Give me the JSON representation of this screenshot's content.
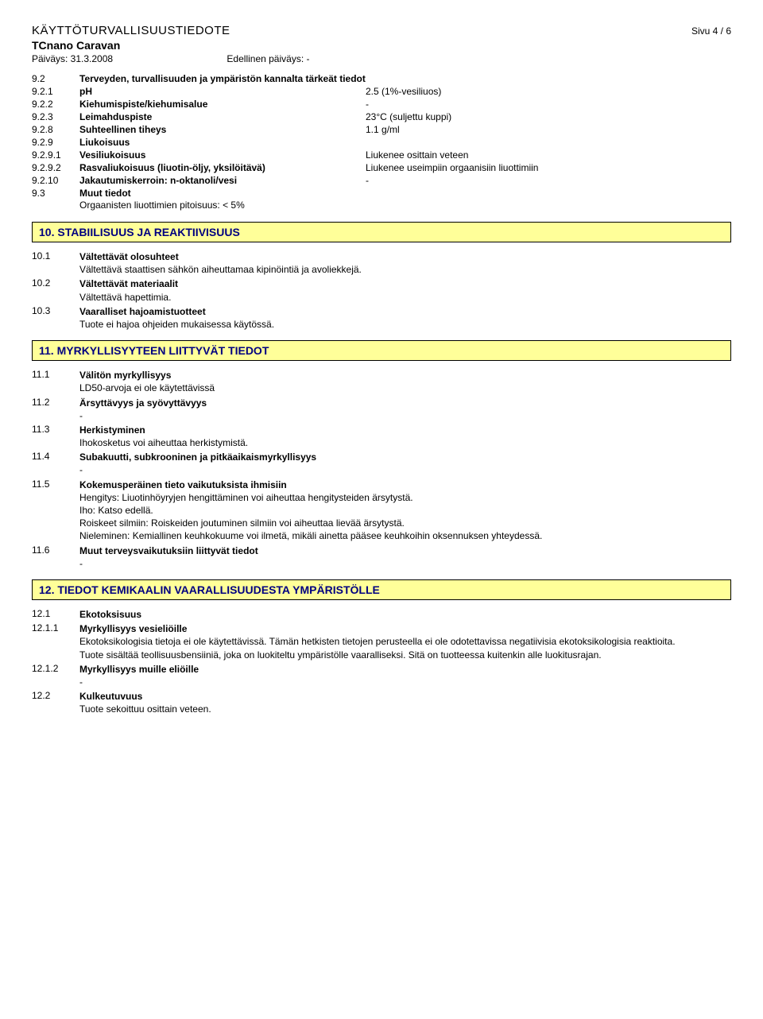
{
  "header": {
    "doc_title": "KÄYTTÖTURVALLISUUSTIEDOTE",
    "page_label": "Sivu  4 / 6",
    "product": "TCnano Caravan",
    "date_label": "Päiväys: 31.3.2008",
    "prev_date_label": "Edellinen päiväys: -"
  },
  "props": {
    "r92": {
      "num": "9.2",
      "label": "Terveyden, turvallisuuden ja ympäristön kannalta tärkeät tiedot",
      "value": ""
    },
    "r921": {
      "num": "9.2.1",
      "label": "pH",
      "value": "2.5 (1%-vesiliuos)"
    },
    "r922": {
      "num": "9.2.2",
      "label": "Kiehumispiste/kiehumisalue",
      "value": "-"
    },
    "r923": {
      "num": "9.2.3",
      "label": "Leimahduspiste",
      "value": "23°C (suljettu kuppi)"
    },
    "r928": {
      "num": "9.2.8",
      "label": "Suhteellinen tiheys",
      "value": "1.1 g/ml"
    },
    "r929": {
      "num": "9.2.9",
      "label": "Liukoisuus",
      "value": ""
    },
    "r9291": {
      "num": "9.2.9.1",
      "label": "Vesiliukoisuus",
      "value": "Liukenee osittain veteen"
    },
    "r9292": {
      "num": "9.2.9.2",
      "label": "Rasvaliukoisuus (liuotin-öljy, yksilöitävä)",
      "value": "Liukenee useimpiin orgaanisiin liuottimiin"
    },
    "r9210": {
      "num": "9.2.10",
      "label": "Jakautumiskerroin: n-oktanoli/vesi",
      "value": "-"
    },
    "r93": {
      "num": "9.3",
      "label": "Muut tiedot",
      "value": ""
    },
    "r93_sub": "Orgaanisten liuottimien pitoisuus: < 5%"
  },
  "s10": {
    "title": "10. STABIILISUUS JA REAKTIIVISUUS",
    "i1": {
      "num": "10.1",
      "title": "Vältettävät olosuhteet",
      "body": "Vältettävä staattisen sähkön aiheuttamaa kipinöintiä ja avoliekkejä."
    },
    "i2": {
      "num": "10.2",
      "title": "Vältettävät materiaalit",
      "body": "Vältettävä hapettimia."
    },
    "i3": {
      "num": "10.3",
      "title": "Vaaralliset hajoamistuotteet",
      "body": "Tuote ei hajoa ohjeiden mukaisessa käytössä."
    }
  },
  "s11": {
    "title": "11. MYRKYLLISYYTEEN LIITTYVÄT TIEDOT",
    "i1": {
      "num": "11.1",
      "title": "Välitön myrkyllisyys",
      "body": "LD50-arvoja ei ole käytettävissä"
    },
    "i2": {
      "num": "11.2",
      "title": "Ärsyttävyys ja syövyttävyys",
      "body": "-"
    },
    "i3": {
      "num": "11.3",
      "title": "Herkistyminen",
      "body": "Ihokosketus voi aiheuttaa herkistymistä."
    },
    "i4": {
      "num": "11.4",
      "title": "Subakuutti, subkrooninen ja pitkäaikaismyrkyllisyys",
      "body": "-"
    },
    "i5": {
      "num": "11.5",
      "title": "Kokemusperäinen tieto vaikutuksista ihmisiin",
      "body1": "Hengitys: Liuotinhöyryjen hengittäminen voi aiheuttaa hengitysteiden ärsytystä.",
      "body2": "Iho: Katso edellä.",
      "body3": "Roiskeet silmiin: Roiskeiden joutuminen silmiin voi aiheuttaa lievää ärsytystä.",
      "body4": "Nieleminen: Kemiallinen keuhkokuume voi ilmetä, mikäli ainetta pääsee keuhkoihin oksennuksen yhteydessä."
    },
    "i6": {
      "num": "11.6",
      "title": "Muut terveysvaikutuksiin liittyvät tiedot",
      "body": "-"
    }
  },
  "s12": {
    "title": "12. TIEDOT KEMIKAALIN VAARALLISUUDESTA YMPÄRISTÖLLE",
    "i1": {
      "num": "12.1",
      "title": "Ekotoksisuus",
      "body": ""
    },
    "i11": {
      "num": "12.1.1",
      "title": "Myrkyllisyys vesieliöille",
      "body1": "Ekotoksikologisia tietoja ei ole käytettävissä. Tämän hetkisten tietojen perusteella ei ole odotettavissa negatiivisia ekotoksikologisia reaktioita.",
      "body2": "Tuote sisältää teollisuusbensiiniä, joka on luokiteltu ympäristölle vaaralliseksi. Sitä on tuotteessa kuitenkin alle luokitusrajan."
    },
    "i12": {
      "num": "12.1.2",
      "title": "Myrkyllisyys muille eliöille",
      "body": "-"
    },
    "i2": {
      "num": "12.2",
      "title": "Kulkeutuvuus",
      "body": "Tuote sekoittuu osittain veteen."
    }
  }
}
